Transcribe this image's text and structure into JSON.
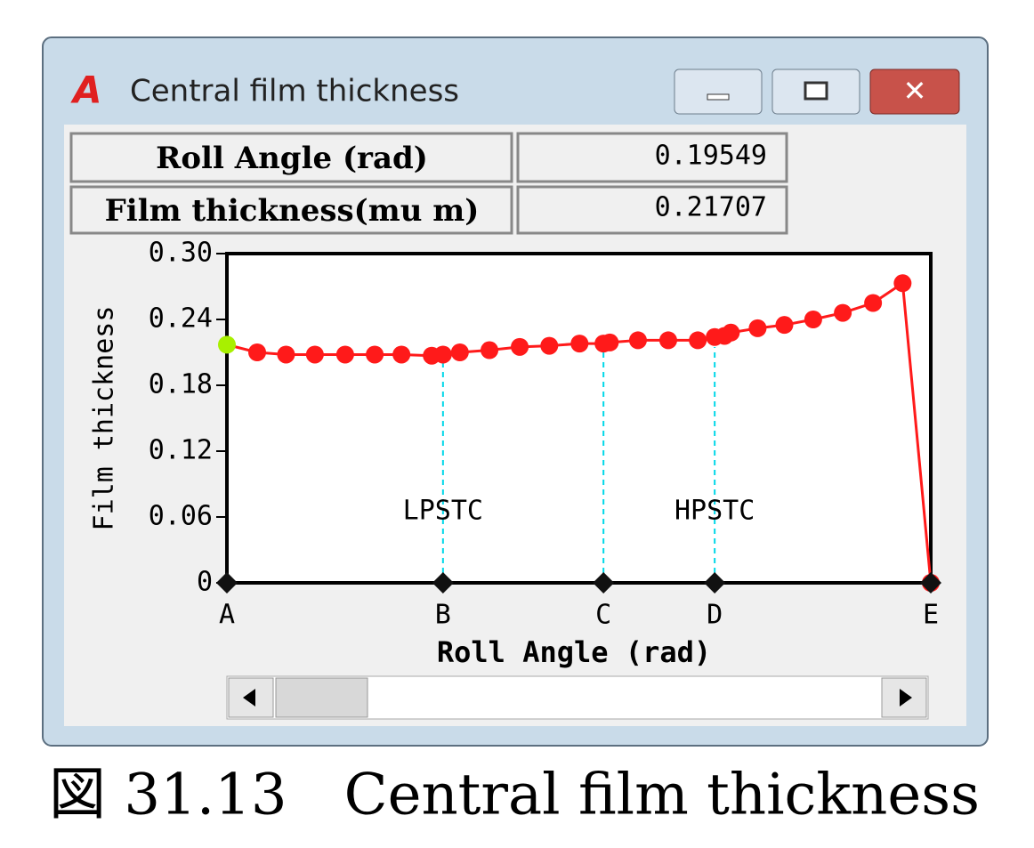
{
  "window": {
    "title": "Central film thickness",
    "fields": [
      {
        "label": "Roll Angle (rad)",
        "value": "0.19549"
      },
      {
        "label": "Film thickness(mu m)",
        "value": "0.21707"
      }
    ]
  },
  "chart_data": {
    "type": "line",
    "ylabel": "Film thickness",
    "xlabel": "Roll Angle (rad)",
    "annotations": [
      "LPSTC",
      "HPSTC"
    ],
    "x": [
      0,
      0.043,
      0.084,
      0.125,
      0.168,
      0.21,
      0.248,
      0.291,
      0.307,
      0.331,
      0.373,
      0.416,
      0.458,
      0.501,
      0.535,
      0.544,
      0.584,
      0.627,
      0.669,
      0.693,
      0.707,
      0.716,
      0.754,
      0.792,
      0.833,
      0.875,
      0.918,
      0.96,
      1
    ],
    "series": [
      {
        "color": "#ff1a1a",
        "values": [
          0.217,
          0.21,
          0.208,
          0.208,
          0.208,
          0.208,
          0.208,
          0.207,
          0.208,
          0.21,
          0.212,
          0.215,
          0.216,
          0.218,
          0.218,
          0.219,
          0.221,
          0.221,
          0.221,
          0.224,
          0.225,
          0.228,
          0.232,
          0.235,
          0.24,
          0.246,
          0.255,
          0.273,
          0
        ]
      }
    ],
    "highlight_color": "#a8f000",
    "xlim": [
      0,
      1
    ],
    "xticks": [
      {
        "value": 0,
        "label": "A"
      },
      {
        "value": 0.307,
        "label": "B"
      },
      {
        "value": 0.535,
        "label": "C"
      },
      {
        "value": 0.693,
        "label": "D"
      },
      {
        "value": 1,
        "label": "E"
      }
    ],
    "ylim": [
      0,
      0.3
    ],
    "yticks": [
      0,
      0.06,
      0.12,
      0.18,
      0.24,
      {
        "value": 0.3,
        "label": "0.30"
      }
    ]
  },
  "caption": "図 31.13　Central film thickness"
}
